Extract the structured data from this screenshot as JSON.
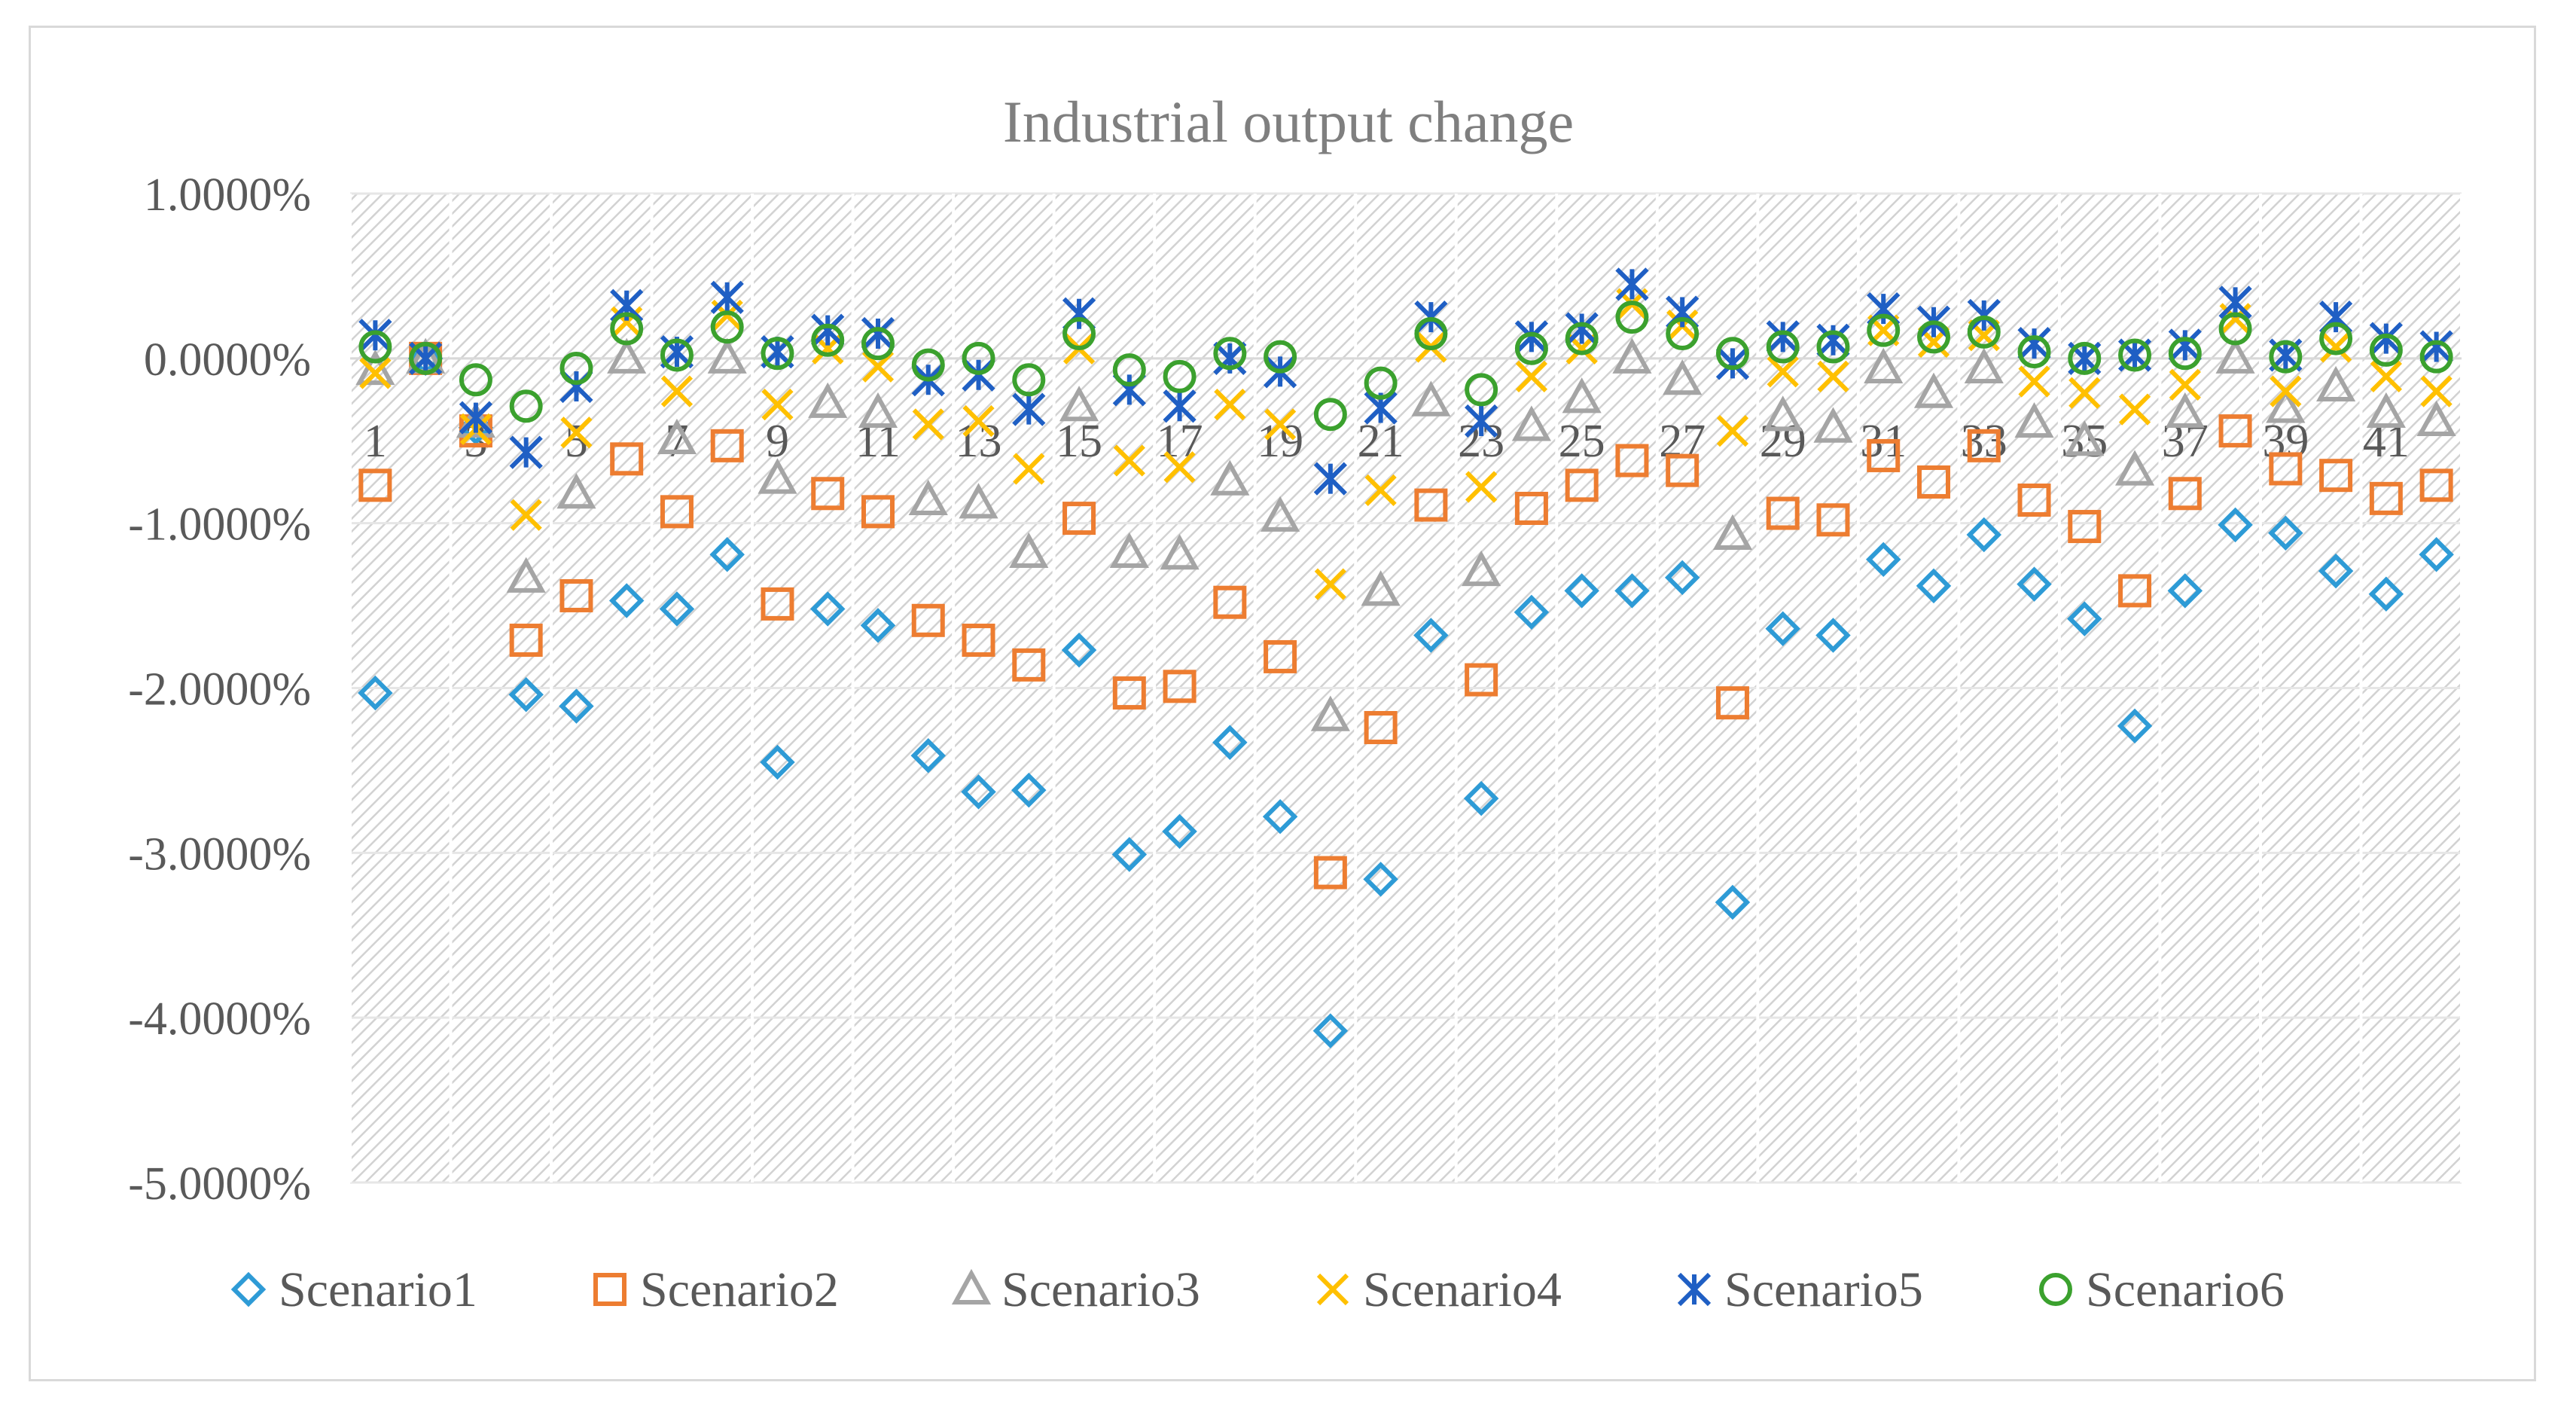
{
  "chart_data": {
    "type": "scatter",
    "title": "Industrial output change",
    "xlabel": "",
    "ylabel": "",
    "ylim": [
      -5,
      1
    ],
    "yticks": [
      1,
      0,
      -1,
      -2,
      -3,
      -4,
      -5
    ],
    "ytick_labels": [
      "1.0000%",
      "0.0000%",
      "-1.0000%",
      "-2.0000%",
      "-3.0000%",
      "-4.0000%",
      "-5.0000%"
    ],
    "x": [
      1,
      2,
      3,
      4,
      5,
      6,
      7,
      8,
      9,
      10,
      11,
      12,
      13,
      14,
      15,
      16,
      17,
      18,
      19,
      20,
      21,
      22,
      23,
      24,
      25,
      26,
      27,
      28,
      29,
      30,
      31,
      32,
      33,
      34,
      35,
      36,
      37,
      38,
      39,
      40,
      41,
      42
    ],
    "xtick_labels": [
      "1",
      "3",
      "5",
      "7",
      "9",
      "11",
      "13",
      "15",
      "17",
      "19",
      "21",
      "23",
      "25",
      "27",
      "29",
      "31",
      "33",
      "35",
      "37",
      "39",
      "41"
    ],
    "xtick_positions": [
      1,
      3,
      5,
      7,
      9,
      11,
      13,
      15,
      17,
      19,
      21,
      23,
      25,
      27,
      29,
      31,
      33,
      35,
      37,
      39,
      41
    ],
    "grid": true,
    "legend": "bottom",
    "series": [
      {
        "name": "Scenario1",
        "marker": "diamond",
        "color": "#2e9bd6",
        "values": [
          -2.03,
          0,
          -0.42,
          -2.04,
          -2.11,
          -1.47,
          -1.52,
          -1.19,
          -2.45,
          -1.52,
          -1.62,
          -2.41,
          -2.63,
          -2.62,
          -1.77,
          -3.01,
          -2.87,
          -2.33,
          -2.78,
          -4.08,
          -3.16,
          -1.68,
          -2.67,
          -1.54,
          -1.41,
          -1.41,
          -1.33,
          -3.3,
          -1.64,
          -1.68,
          -1.22,
          -1.38,
          -1.07,
          -1.37,
          -1.58,
          -2.23,
          -1.41,
          -1.01,
          -1.06,
          -1.29,
          -1.43,
          -1.19
        ]
      },
      {
        "name": "Scenario2",
        "marker": "square",
        "color": "#ed7d31",
        "values": [
          -0.77,
          0,
          -0.44,
          -1.71,
          -1.44,
          -0.61,
          -0.93,
          -0.53,
          -1.49,
          -0.82,
          -0.93,
          -1.59,
          -1.71,
          -1.86,
          -0.97,
          -2.03,
          -1.99,
          -1.48,
          -1.81,
          -3.12,
          -2.24,
          -0.89,
          -1.95,
          -0.91,
          -0.77,
          -0.62,
          -0.68,
          -2.09,
          -0.94,
          -0.98,
          -0.59,
          -0.75,
          -0.53,
          -0.86,
          -1.02,
          -1.41,
          -0.82,
          -0.44,
          -0.67,
          -0.71,
          -0.85,
          -0.77
        ]
      },
      {
        "name": "Scenario3",
        "marker": "triangle",
        "color": "#a5a5a5",
        "values": [
          -0.07,
          0,
          -0.39,
          -1.33,
          -0.82,
          0,
          -0.49,
          0,
          -0.73,
          -0.27,
          -0.33,
          -0.86,
          -0.88,
          -1.18,
          -0.29,
          -1.18,
          -1.19,
          -0.74,
          -0.96,
          -2.17,
          -1.41,
          -0.26,
          -1.29,
          -0.41,
          -0.24,
          0,
          -0.13,
          -1.07,
          -0.35,
          -0.42,
          -0.06,
          -0.21,
          -0.06,
          -0.39,
          -0.5,
          -0.68,
          -0.33,
          0,
          -0.3,
          -0.17,
          -0.33,
          -0.38
        ]
      },
      {
        "name": "Scenario4",
        "marker": "x",
        "color": "#ffc000",
        "values": [
          -0.09,
          0,
          -0.43,
          -0.95,
          -0.45,
          0.22,
          -0.2,
          0.26,
          -0.28,
          0.06,
          -0.05,
          -0.4,
          -0.38,
          -0.67,
          0.06,
          -0.62,
          -0.66,
          -0.28,
          -0.4,
          -1.37,
          -0.8,
          0.07,
          -0.78,
          -0.11,
          0.06,
          0.33,
          0.2,
          -0.44,
          -0.08,
          -0.11,
          0.17,
          0.1,
          0.14,
          -0.14,
          -0.21,
          -0.31,
          -0.16,
          0.24,
          -0.2,
          0.07,
          -0.11,
          -0.2
        ]
      },
      {
        "name": "Scenario5",
        "marker": "star",
        "color": "#1f5fc4",
        "values": [
          0.14,
          0,
          -0.36,
          -0.57,
          -0.17,
          0.32,
          0.04,
          0.37,
          0.04,
          0.17,
          0.15,
          -0.13,
          -0.1,
          -0.31,
          0.27,
          -0.19,
          -0.29,
          0,
          -0.08,
          -0.73,
          -0.3,
          0.25,
          -0.38,
          0.13,
          0.18,
          0.45,
          0.28,
          -0.03,
          0.13,
          0.11,
          0.3,
          0.22,
          0.26,
          0.09,
          0,
          0.02,
          0.08,
          0.34,
          0.02,
          0.25,
          0.12,
          0.07
        ]
      },
      {
        "name": "Scenario6",
        "marker": "circle",
        "color": "#3ba12e",
        "values": [
          0.07,
          0,
          -0.13,
          -0.29,
          -0.06,
          0.18,
          0.02,
          0.19,
          0.03,
          0.11,
          0.09,
          -0.04,
          0,
          -0.13,
          0.15,
          -0.07,
          -0.11,
          0.03,
          0.01,
          -0.34,
          -0.15,
          0.15,
          -0.19,
          0.06,
          0.12,
          0.25,
          0.15,
          0.03,
          0.07,
          0.07,
          0.17,
          0.13,
          0.16,
          0.04,
          0,
          0.02,
          0.03,
          0.18,
          0.01,
          0.12,
          0.05,
          0.01
        ]
      }
    ]
  }
}
